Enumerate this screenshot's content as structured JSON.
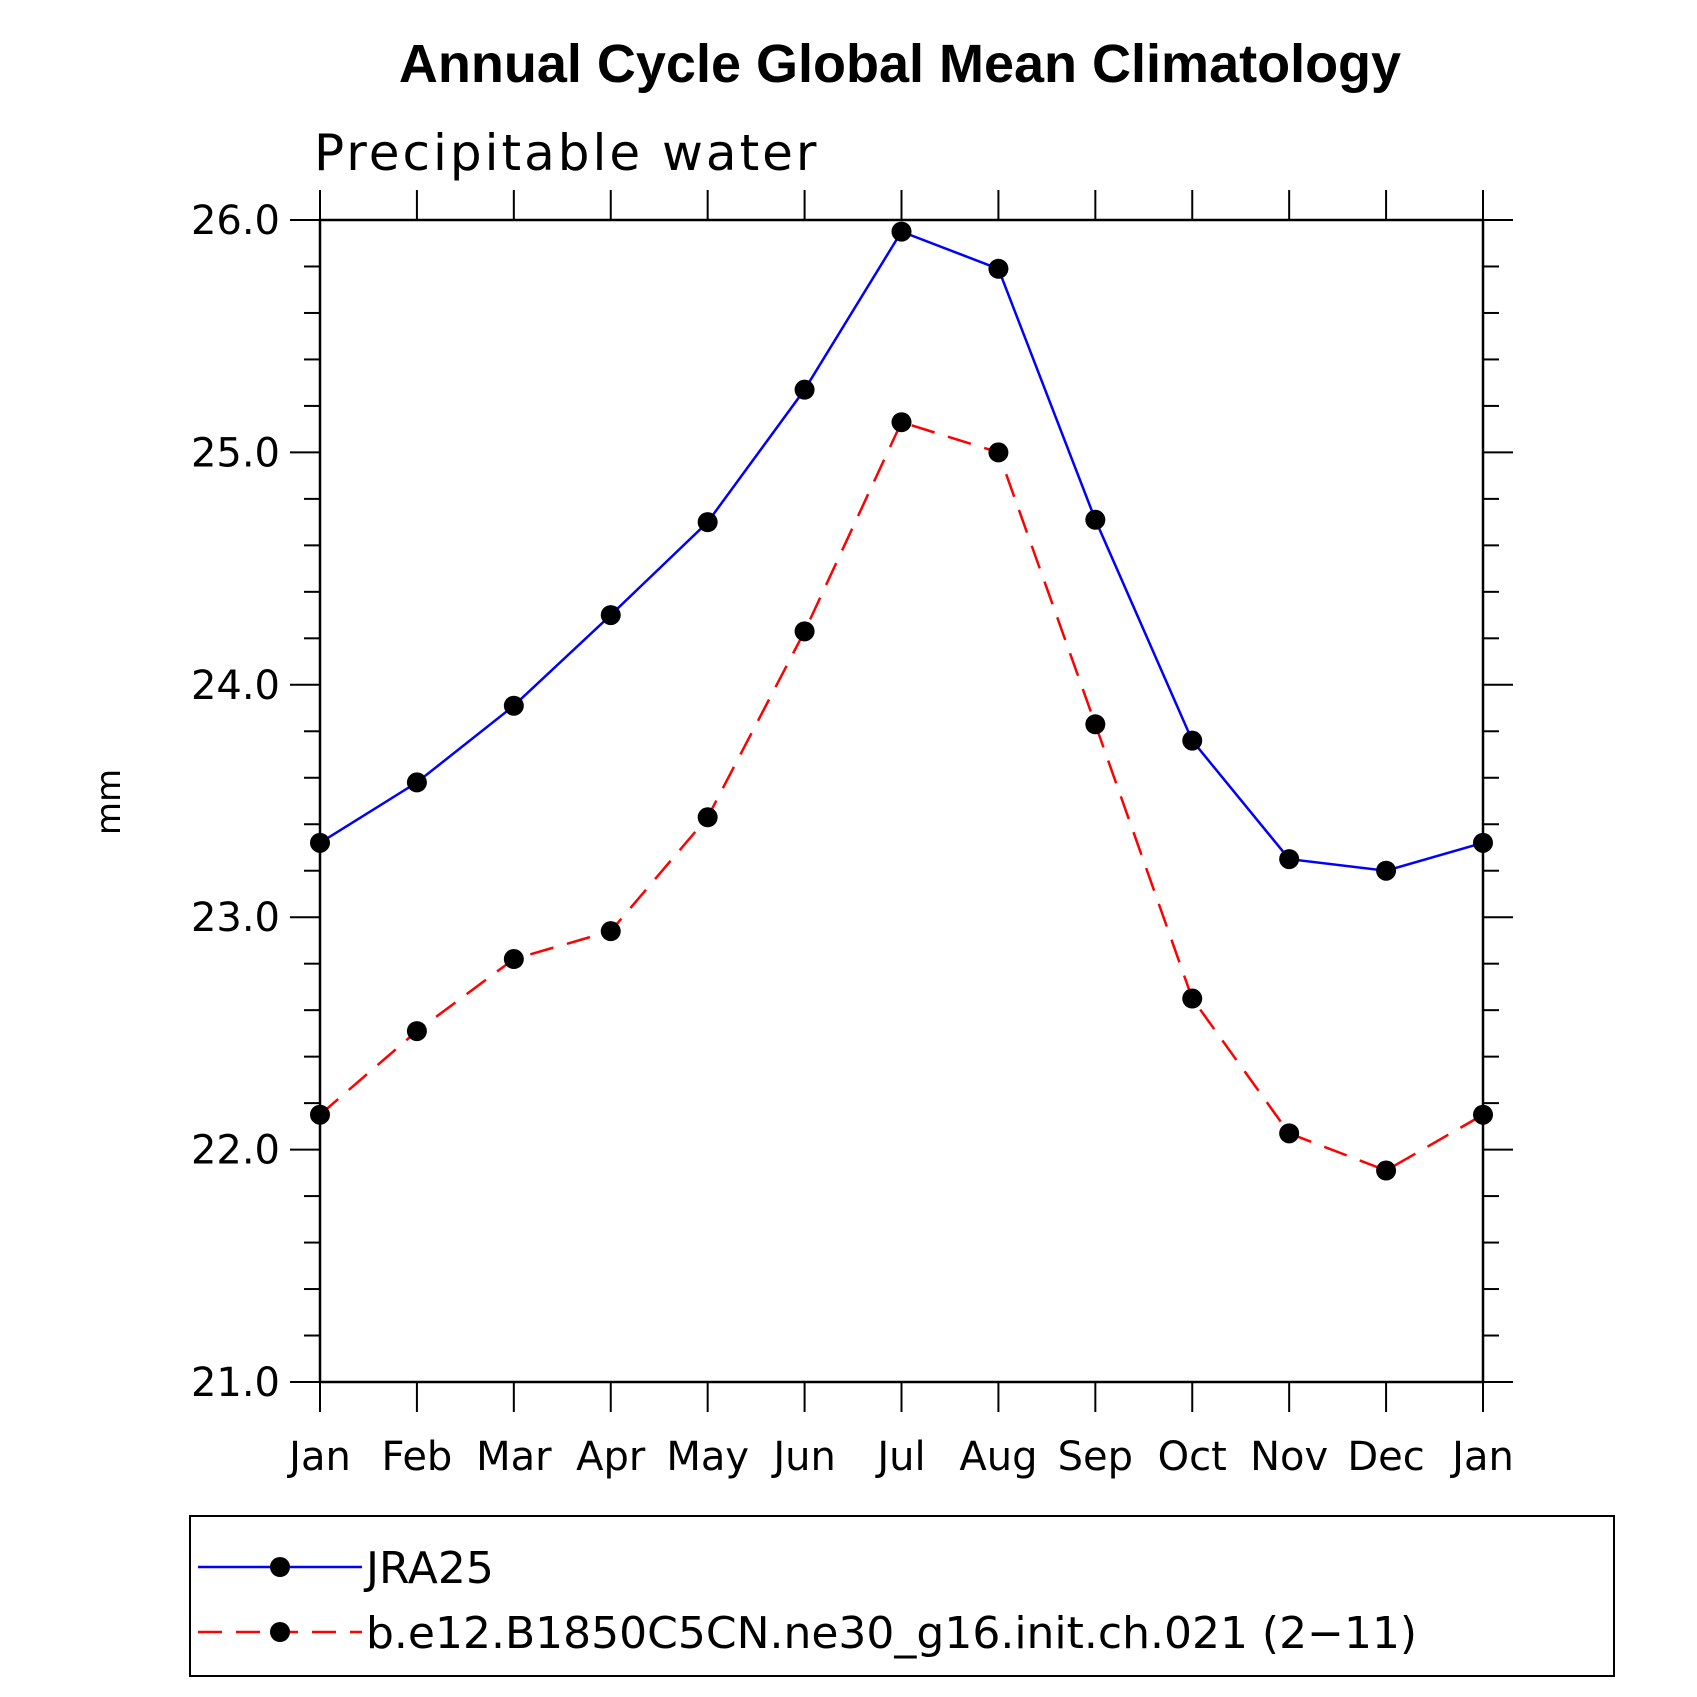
{
  "chart_data": {
    "type": "line",
    "title": "Annual Cycle Global Mean Climatology",
    "subtitle": "Precipitable water",
    "xlabel": "",
    "ylabel": "mm",
    "categories": [
      "Jan",
      "Feb",
      "Mar",
      "Apr",
      "May",
      "Jun",
      "Jul",
      "Aug",
      "Sep",
      "Oct",
      "Nov",
      "Dec",
      "Jan"
    ],
    "ylim": [
      21.0,
      26.0
    ],
    "yticks": [
      "21.0",
      "22.0",
      "23.0",
      "24.0",
      "25.0",
      "26.0"
    ],
    "y_tick_values": [
      21.0,
      22.0,
      23.0,
      24.0,
      25.0,
      26.0
    ],
    "y_minor_step": 0.2,
    "legend_position": "bottom",
    "series": [
      {
        "name": "JRA25",
        "color": "#0000ff",
        "dash": "solid",
        "marker": "circle",
        "values": [
          23.32,
          23.58,
          23.91,
          24.3,
          24.7,
          25.27,
          25.95,
          25.79,
          24.71,
          23.76,
          23.25,
          23.2,
          23.32
        ]
      },
      {
        "name": "b.e12.B1850C5CN.ne30_g16.init.ch.021 (2−11)",
        "color": "#ff0000",
        "dash": "dashed",
        "marker": "circle",
        "values": [
          22.15,
          22.51,
          22.82,
          22.94,
          23.43,
          24.23,
          25.13,
          25.0,
          23.83,
          22.65,
          22.07,
          21.91,
          22.15
        ]
      }
    ]
  }
}
